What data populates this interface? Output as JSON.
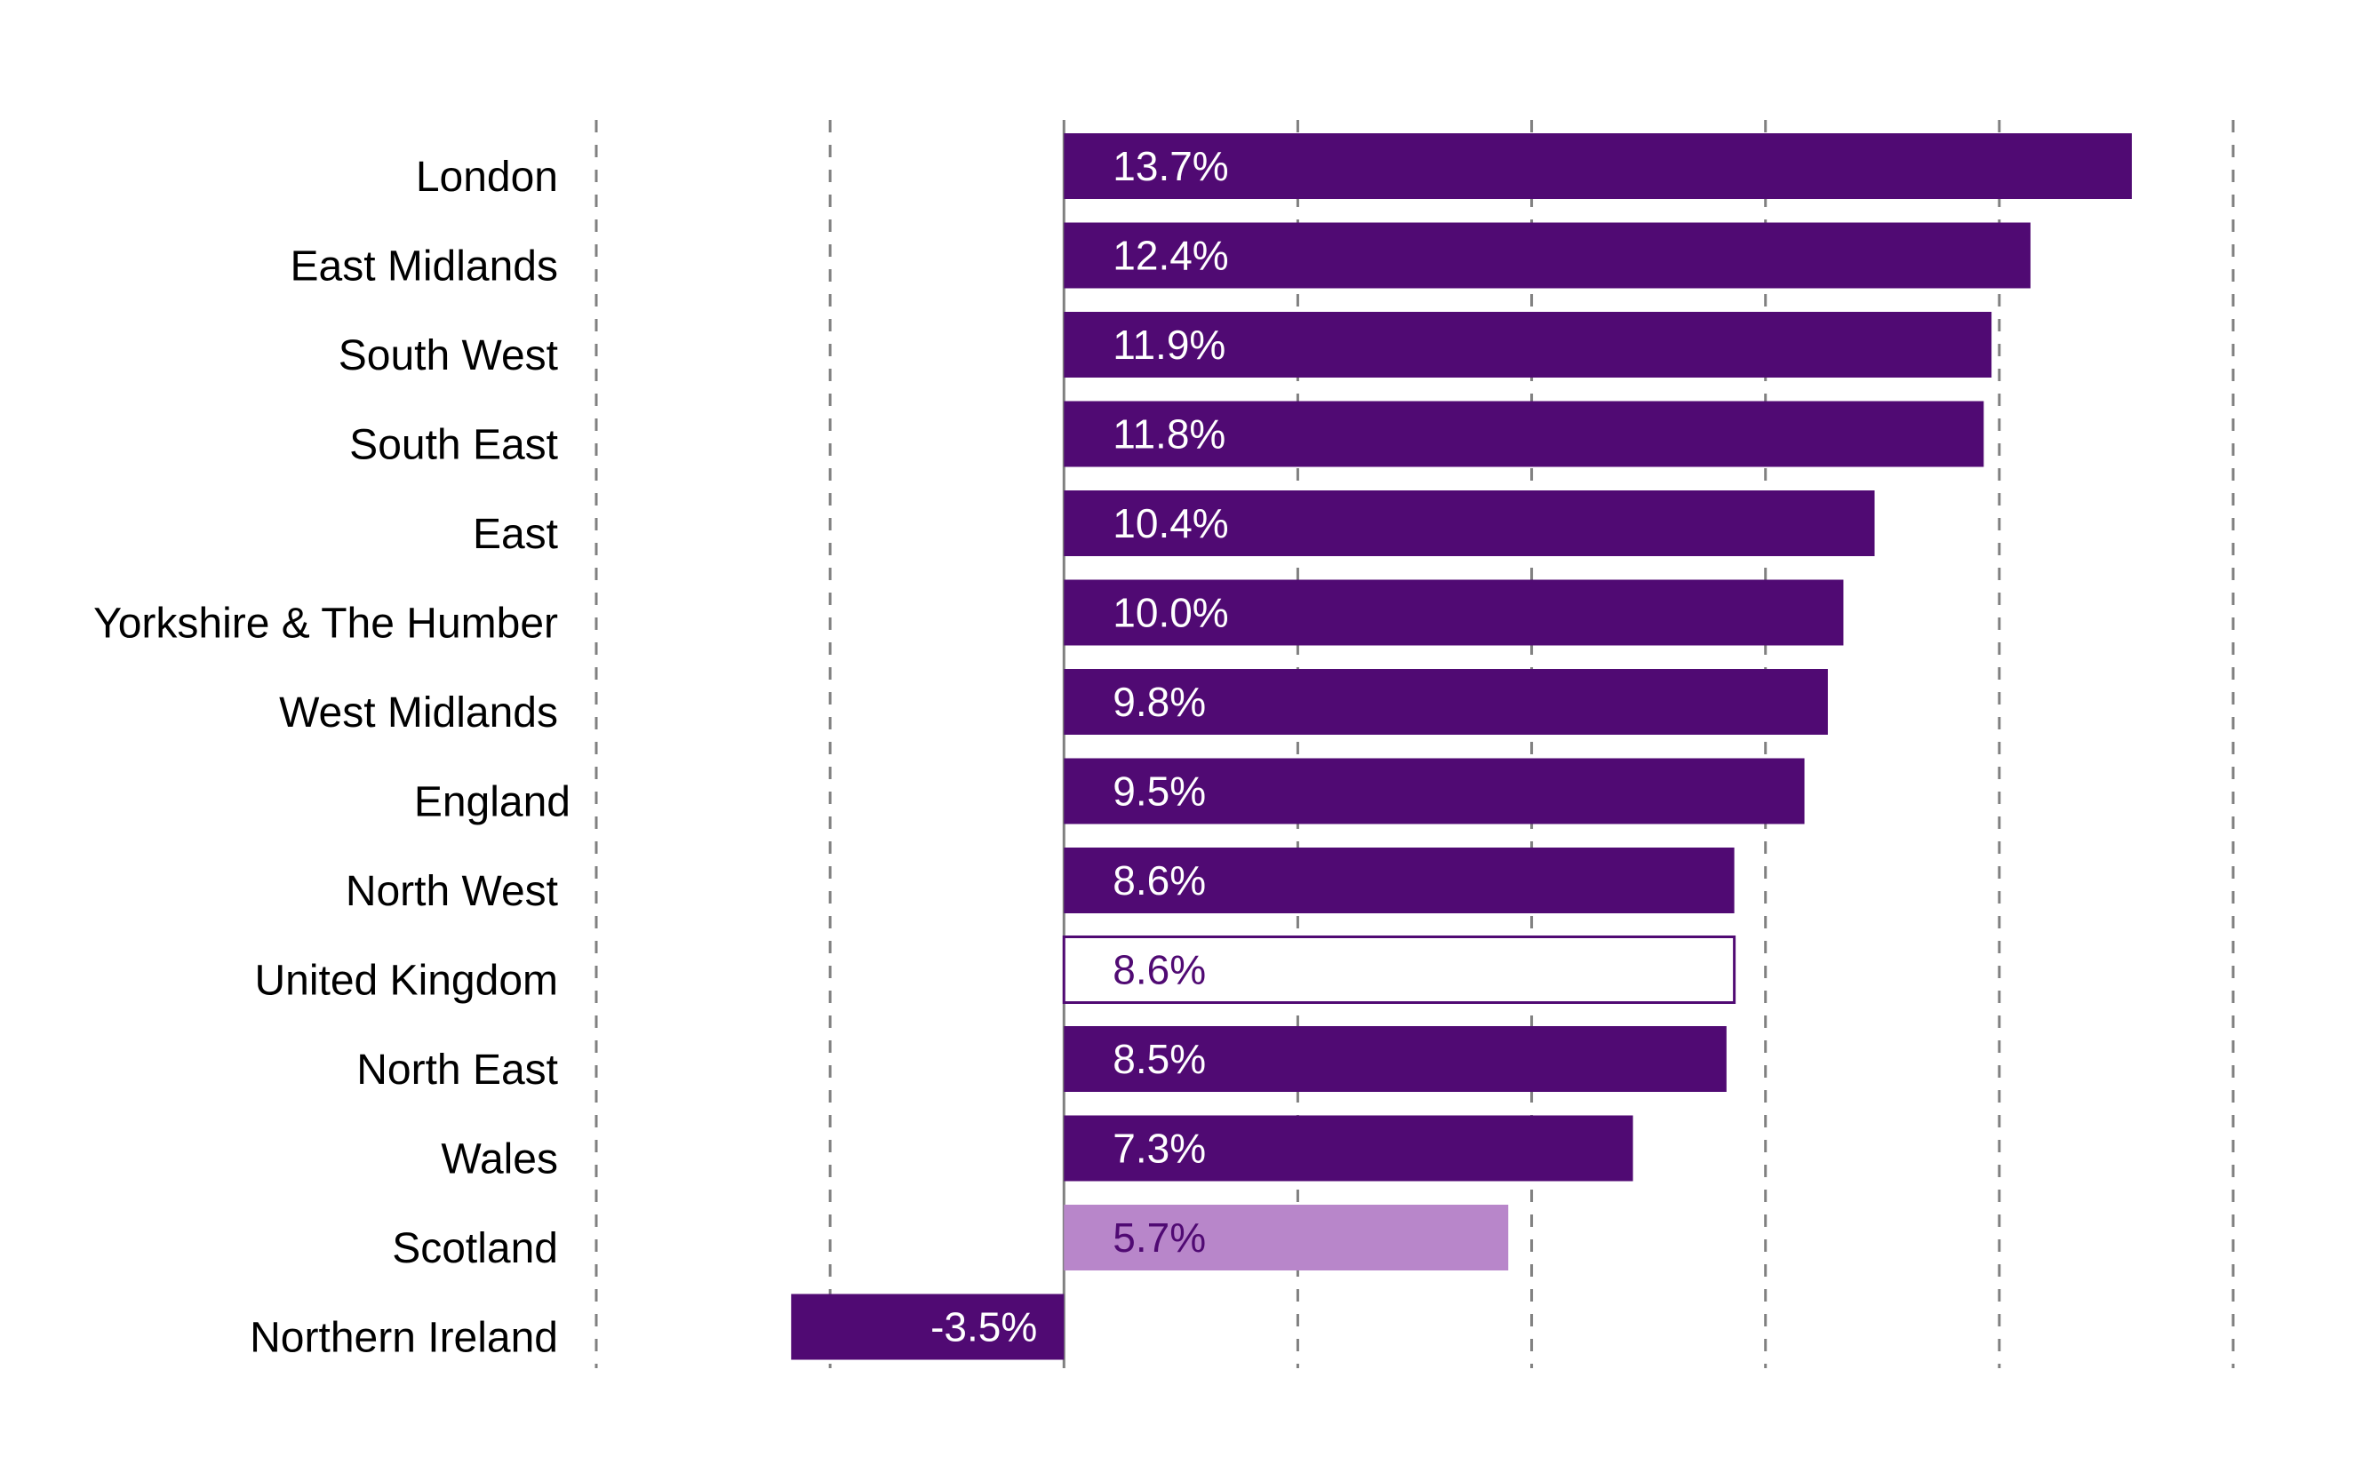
{
  "chart_data": {
    "type": "bar",
    "orientation": "horizontal",
    "title": "",
    "xlabel": "",
    "ylabel": "",
    "xlim": [
      -6,
      15
    ],
    "grid_step": 3,
    "grid": true,
    "x_tick_labels_shown": false,
    "categories": [
      "London",
      "East Midlands",
      "South West",
      "South East",
      "East",
      "Yorkshire & The Humber",
      "West Midlands",
      "England",
      "North West",
      "United Kingdom",
      "North East",
      "Wales",
      "Scotland",
      "Northern Ireland"
    ],
    "values": [
      13.7,
      12.4,
      11.9,
      11.8,
      10.4,
      10.0,
      9.8,
      9.5,
      8.6,
      8.6,
      8.5,
      7.3,
      5.7,
      -3.5
    ],
    "value_labels": [
      "13.7%",
      "12.4%",
      "11.9%",
      "11.8%",
      "10.4%",
      "10.0%",
      "9.8%",
      "9.5%",
      "8.6%",
      "8.6%",
      "8.5%",
      "7.3%",
      "5.7%",
      "-3.5%"
    ],
    "styles": [
      "dark",
      "dark",
      "dark",
      "dark",
      "dark",
      "dark",
      "dark",
      "dark",
      "dark",
      "outline",
      "dark",
      "dark",
      "light",
      "dark"
    ]
  },
  "colors": {
    "dark": "#500a73",
    "light": "#b886ca",
    "outline_fill": "#ffffff",
    "label_on_dark": "#ffffff",
    "label_on_light": "#500a73",
    "grid": "#808080",
    "axis": "#808080"
  }
}
